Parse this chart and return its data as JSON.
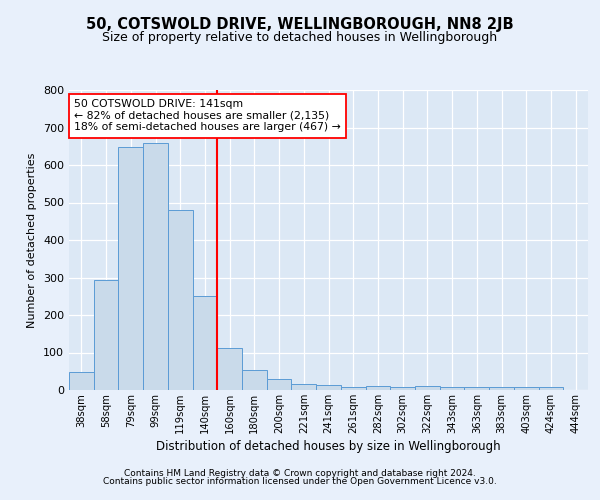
{
  "title": "50, COTSWOLD DRIVE, WELLINGBOROUGH, NN8 2JB",
  "subtitle": "Size of property relative to detached houses in Wellingborough",
  "xlabel": "Distribution of detached houses by size in Wellingborough",
  "ylabel": "Number of detached properties",
  "bar_labels": [
    "38sqm",
    "58sqm",
    "79sqm",
    "99sqm",
    "119sqm",
    "140sqm",
    "160sqm",
    "180sqm",
    "200sqm",
    "221sqm",
    "241sqm",
    "261sqm",
    "282sqm",
    "302sqm",
    "322sqm",
    "343sqm",
    "363sqm",
    "383sqm",
    "403sqm",
    "424sqm",
    "444sqm"
  ],
  "bar_values": [
    48,
    293,
    648,
    660,
    480,
    250,
    113,
    53,
    30,
    15,
    13,
    8,
    10,
    8,
    10,
    8,
    8,
    8,
    8,
    8,
    0
  ],
  "bar_color": "#c9daea",
  "bar_edge_color": "#5b9bd5",
  "red_line_x": 5.5,
  "annotation_line1": "50 COTSWOLD DRIVE: 141sqm",
  "annotation_line2": "← 82% of detached houses are smaller (2,135)",
  "annotation_line3": "18% of semi-detached houses are larger (467) →",
  "ylim": [
    0,
    800
  ],
  "yticks": [
    0,
    100,
    200,
    300,
    400,
    500,
    600,
    700,
    800
  ],
  "footer_line1": "Contains HM Land Registry data © Crown copyright and database right 2024.",
  "footer_line2": "Contains public sector information licensed under the Open Government Licence v3.0.",
  "fig_bg_color": "#e8f0fb",
  "plot_bg_color": "#dce8f5"
}
